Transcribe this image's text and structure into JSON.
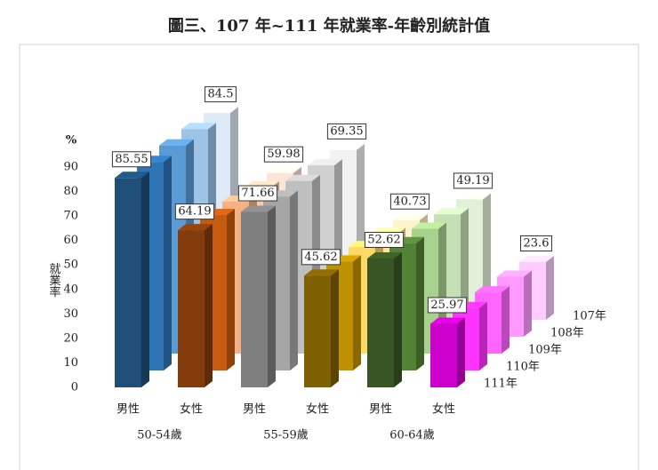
{
  "chart_data": {
    "type": "bar3d",
    "title": "圖三、107 年~111 年就業率-年齡別統計值",
    "y_label": "就業率",
    "y_unit": "%",
    "categories": [
      "男性",
      "女性",
      "男性",
      "女性",
      "男性",
      "女性"
    ],
    "groups": [
      "50-54歲",
      "55-59歲",
      "60-64歲"
    ],
    "ylim": [
      0,
      90
    ],
    "yticks": [
      0,
      10,
      20,
      30,
      40,
      50,
      60,
      70,
      80,
      90
    ],
    "series": [
      {
        "name": "107年",
        "values": [
          84.5,
          59.98,
          69.35,
          40.73,
          49.19,
          23.6
        ],
        "colors": [
          "#deebf7",
          "#fbe5d6",
          "#f2f2f2",
          "#fff2cc",
          "#e2f0d9",
          "#ffccff"
        ]
      },
      {
        "name": "108年",
        "values": [
          84.8,
          61,
          70,
          42,
          50,
          24.5
        ],
        "colors": [
          "#9dc3e6",
          "#f8cbad",
          "#d0d0d0",
          "#ffe699",
          "#c5e0b4",
          "#ff99ff"
        ]
      },
      {
        "name": "109年",
        "values": [
          85,
          62,
          70.5,
          43.5,
          51,
          25
        ],
        "colors": [
          "#5b9bd5",
          "#f4b183",
          "#bfbfbf",
          "#ffd966",
          "#a9d18e",
          "#ff66ff"
        ]
      },
      {
        "name": "110年",
        "values": [
          85.2,
          63.5,
          71,
          44.5,
          52,
          25.5
        ],
        "colors": [
          "#2e75b6",
          "#c55a11",
          "#a6a6a6",
          "#bf9000",
          "#548235",
          "#ff33ff"
        ]
      },
      {
        "name": "111年",
        "values": [
          85.55,
          64.19,
          71.66,
          45.62,
          52.62,
          25.97
        ],
        "colors": [
          "#1f4e79",
          "#843c0c",
          "#7f7f7f",
          "#7f6000",
          "#375623",
          "#cc00cc"
        ]
      }
    ]
  }
}
